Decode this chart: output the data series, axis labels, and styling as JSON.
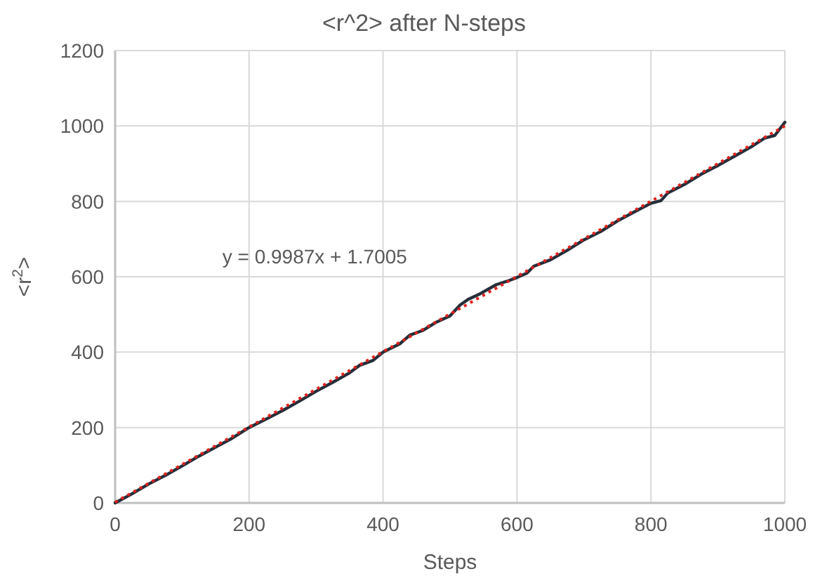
{
  "chart_data": {
    "type": "line",
    "title": "<r^2>  after N-steps",
    "xlabel": "Steps",
    "ylabel": "<r$^{2}$>",
    "xlim": [
      0,
      1000
    ],
    "xticks": [
      0,
      200,
      400,
      600,
      800,
      1000
    ],
    "ylim": [
      0,
      1200
    ],
    "yticks": [
      0,
      200,
      400,
      600,
      800,
      1000,
      1200
    ],
    "grid": true,
    "annotations": [
      "y = 0.9987x + 1.7005"
    ],
    "series": [
      {
        "color": "#262e3b",
        "line_style": "solid",
        "x": [
          0,
          25,
          50,
          75,
          100,
          125,
          150,
          175,
          200,
          225,
          250,
          275,
          300,
          325,
          350,
          365,
          385,
          400,
          425,
          440,
          460,
          480,
          500,
          515,
          527,
          545,
          569,
          585,
          600,
          615,
          625,
          650,
          675,
          700,
          725,
          750,
          775,
          800,
          815,
          825,
          850,
          875,
          900,
          925,
          950,
          970,
          985,
          1000
        ],
        "values": [
          0,
          24,
          50,
          73,
          98,
          124,
          148,
          172,
          200,
          222,
          245,
          270,
          296,
          320,
          345,
          365,
          378,
          400,
          422,
          445,
          458,
          480,
          496,
          525,
          540,
          555,
          579,
          588,
          598,
          610,
          628,
          645,
          670,
          698,
          720,
          748,
          772,
          795,
          802,
          822,
          845,
          872,
          895,
          920,
          945,
          968,
          975,
          1010
        ]
      },
      {
        "color": "#e0201b",
        "line_style": "dotted",
        "x": [
          0,
          1000
        ],
        "values": [
          2,
          1000
        ]
      }
    ]
  }
}
